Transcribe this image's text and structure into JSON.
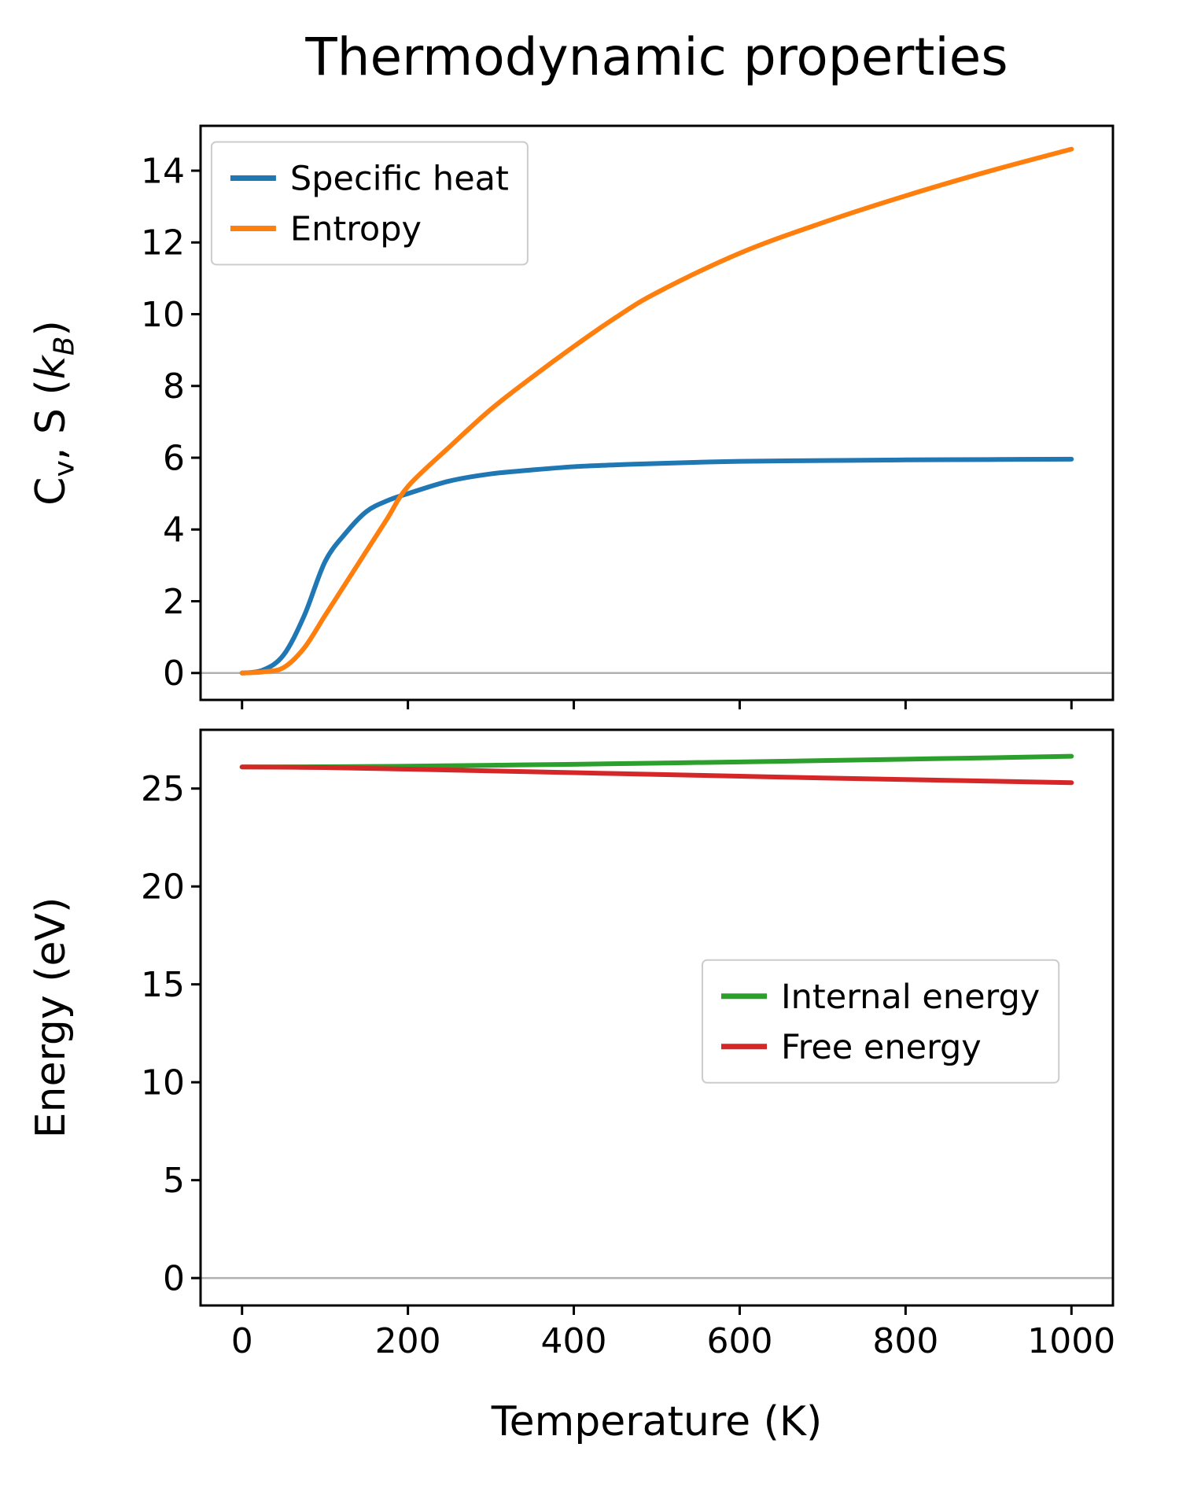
{
  "title": "Thermodynamic properties",
  "xlabel": "Temperature (K)",
  "style": {
    "spine_color": "#000000",
    "zero_line_color": "#b0b0b0",
    "legend_border_color": "#cccccc",
    "text_color": "#000000",
    "background": "#ffffff"
  },
  "chart_data": [
    {
      "type": "line",
      "title": "Thermodynamic properties",
      "ylabel": "C_{v}, S (*k_{B}*)",
      "xlabel": "Temperature (K)",
      "xlim": [
        -50,
        1050
      ],
      "ylim": [
        -0.75,
        15.25
      ],
      "xticks": [
        0,
        200,
        400,
        600,
        800,
        1000
      ],
      "yticks": [
        0,
        2,
        4,
        6,
        8,
        10,
        12,
        14
      ],
      "show_x_tick_labels": false,
      "grid": false,
      "zero_line": true,
      "legend": {
        "position": "upper left",
        "anchor": [
          0.012,
          0.028
        ]
      },
      "x": [
        0,
        25,
        50,
        75,
        100,
        125,
        150,
        175,
        200,
        250,
        300,
        350,
        400,
        450,
        500,
        600,
        700,
        800,
        900,
        1000
      ],
      "series": [
        {
          "name": "Specific heat",
          "color": "#1f77b4",
          "values": [
            0,
            0.08,
            0.5,
            1.6,
            3.1,
            3.9,
            4.5,
            4.8,
            5.0,
            5.35,
            5.55,
            5.66,
            5.75,
            5.8,
            5.84,
            5.9,
            5.92,
            5.94,
            5.95,
            5.96
          ]
        },
        {
          "name": "Entropy",
          "color": "#ff7f0e",
          "values": [
            0,
            0.03,
            0.15,
            0.7,
            1.6,
            2.5,
            3.4,
            4.3,
            5.2,
            6.3,
            7.35,
            8.25,
            9.1,
            9.9,
            10.6,
            11.7,
            12.55,
            13.3,
            13.98,
            14.6
          ]
        }
      ]
    },
    {
      "type": "line",
      "ylabel": "Energy (eV)",
      "xlabel": "Temperature (K)",
      "xlim": [
        -50,
        1050
      ],
      "ylim": [
        -1.4,
        28.0
      ],
      "xticks": [
        0,
        200,
        400,
        600,
        800,
        1000
      ],
      "yticks": [
        0,
        5,
        10,
        15,
        20,
        25
      ],
      "show_x_tick_labels": true,
      "grid": false,
      "zero_line": true,
      "legend": {
        "position": "center right",
        "anchor": [
          0.55,
          0.4
        ]
      },
      "x": [
        0,
        100,
        200,
        300,
        400,
        500,
        600,
        700,
        800,
        900,
        1000
      ],
      "series": [
        {
          "name": "Internal energy",
          "color": "#2ca02c",
          "values": [
            26.1,
            26.11,
            26.14,
            26.19,
            26.24,
            26.3,
            26.36,
            26.43,
            26.5,
            26.57,
            26.65
          ]
        },
        {
          "name": "Free energy",
          "color": "#d62728",
          "values": [
            26.1,
            26.07,
            25.99,
            25.9,
            25.81,
            25.72,
            25.63,
            25.54,
            25.46,
            25.38,
            25.3
          ]
        }
      ]
    }
  ]
}
